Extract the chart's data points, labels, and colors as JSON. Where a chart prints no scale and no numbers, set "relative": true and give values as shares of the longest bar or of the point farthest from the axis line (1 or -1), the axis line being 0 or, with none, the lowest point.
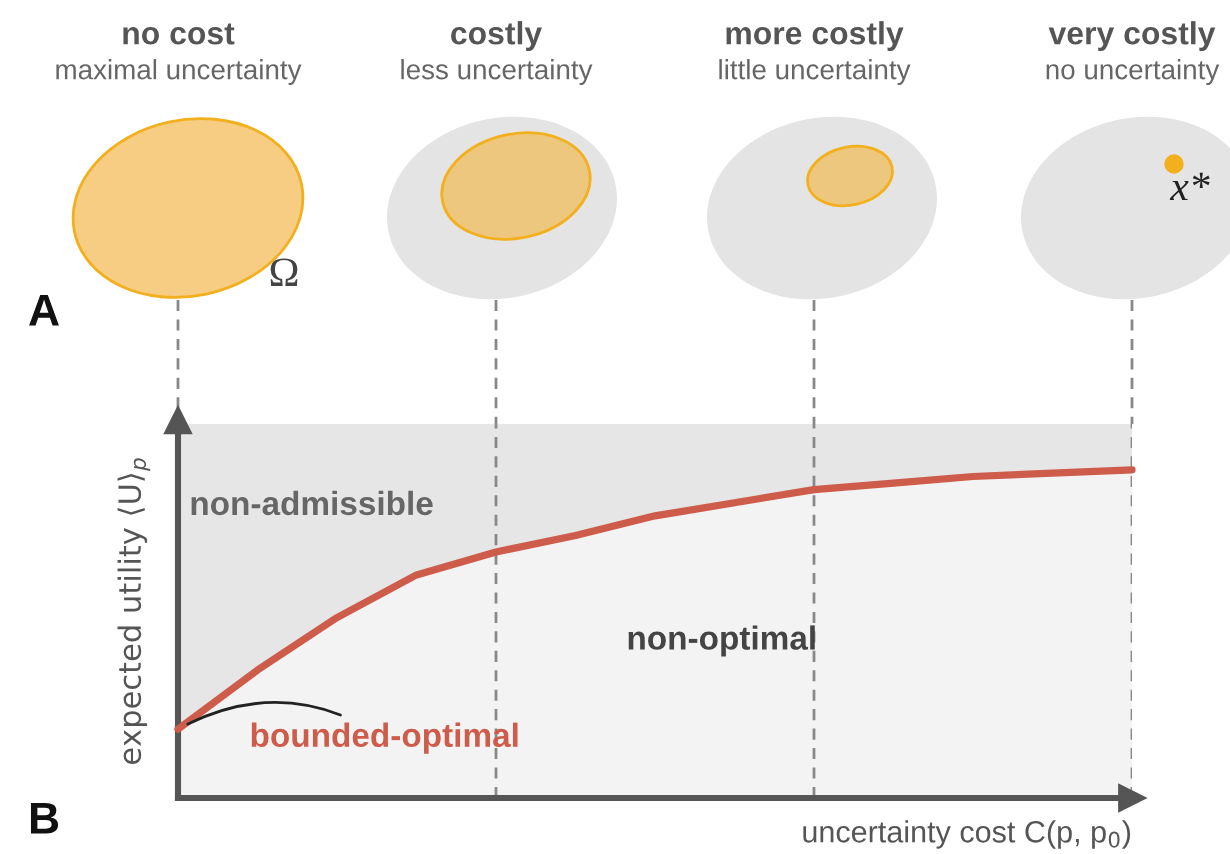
{
  "chart_data": {
    "type": "area",
    "relative": true,
    "categories": [
      null,
      null,
      null,
      null,
      null,
      null,
      null,
      null,
      null,
      null,
      null,
      null,
      null
    ],
    "xlabel": "uncertainty cost C(p, p$_{0}$)",
    "ylabel": "expected utility ⟨U⟩$_{p}$",
    "series": [
      {
        "color": "#cd5c4a",
        "values": [
          0.21,
          0.39,
          0.55,
          0.68,
          0.75,
          0.8,
          0.86,
          0.9,
          0.94,
          0.96,
          0.98,
          0.99,
          1.0
        ]
      }
    ],
    "bands": [
      {
        "axis": "y",
        "from": 0,
        "to": 1.14,
        "color": "#e6e6e6"
      }
    ],
    "ref_lines": [
      {
        "axis": "x",
        "color": "#888888",
        "line_style": "dashed"
      },
      {
        "axis": "x",
        "color": "#888888",
        "line_style": "dashed"
      },
      {
        "axis": "x",
        "color": "#888888",
        "line_style": "dashed"
      },
      {
        "axis": "x",
        "color": "#888888",
        "line_style": "dashed"
      }
    ],
    "annotations": [
      "no cost",
      "maximal uncertainty",
      "costly",
      "less uncertainty",
      "more costly",
      "little uncertainty",
      "very costly",
      "no uncertainty",
      "Ω",
      "x*",
      "A",
      "B",
      "non-admissible",
      "non-optimal",
      "bounded-optimal"
    ]
  }
}
